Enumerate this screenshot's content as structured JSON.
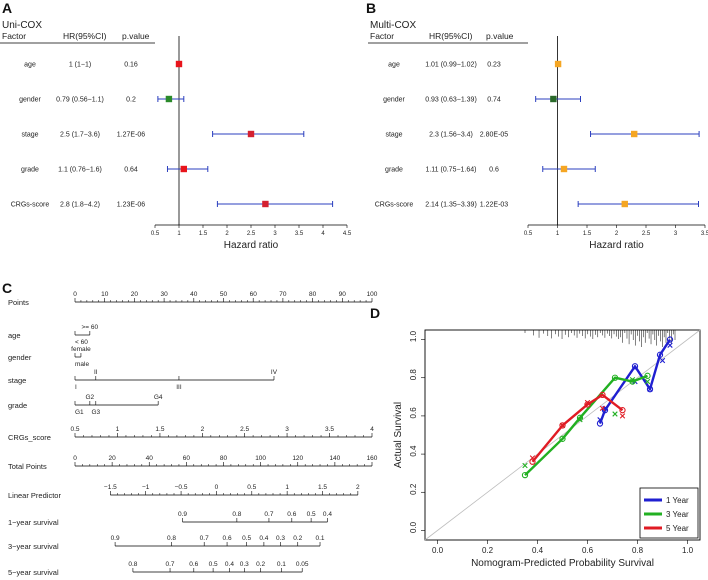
{
  "chart_data": [
    {
      "panel": "A",
      "type": "forest",
      "title": "Uni-COX",
      "headers": [
        "Factor",
        "HR(95%CI)",
        "p.value"
      ],
      "xlabel": "Hazard ratio",
      "xlim": [
        0.5,
        4.5
      ],
      "ticks": [
        "0.5",
        "1",
        "1.5",
        "2",
        "2.5",
        "3",
        "3.5",
        "4",
        "4.5"
      ],
      "rows": [
        {
          "factor": "age",
          "hr_text": "1 (1−1)",
          "p": "0.16",
          "hr": 1.0,
          "lo": 1.0,
          "hi": 1.0,
          "color": "#e8141b"
        },
        {
          "factor": "gender",
          "hr_text": "0.79 (0.56−1.1)",
          "p": "0.2",
          "hr": 0.79,
          "lo": 0.56,
          "hi": 1.1,
          "color": "#2a8a2a"
        },
        {
          "factor": "stage",
          "hr_text": "2.5 (1.7−3.6)",
          "p": "1.27E-06",
          "hr": 2.5,
          "lo": 1.7,
          "hi": 3.6,
          "color": "#d42030"
        },
        {
          "factor": "grade",
          "hr_text": "1.1 (0.76−1.6)",
          "p": "0.64",
          "hr": 1.1,
          "lo": 0.76,
          "hi": 1.6,
          "color": "#e8141b"
        },
        {
          "factor": "CRGs-score",
          "hr_text": "2.8 (1.8−4.2)",
          "p": "1.23E-06",
          "hr": 2.8,
          "lo": 1.8,
          "hi": 4.2,
          "color": "#d42030"
        }
      ]
    },
    {
      "panel": "B",
      "type": "forest",
      "title": "Multi-COX",
      "headers": [
        "Factor",
        "HR(95%CI)",
        "p.value"
      ],
      "xlabel": "Hazard ratio",
      "xlim": [
        0.5,
        3.5
      ],
      "ticks": [
        "0.5",
        "1",
        "1.5",
        "2",
        "2.5",
        "3",
        "3.5"
      ],
      "rows": [
        {
          "factor": "age",
          "hr_text": "1.01 (0.99−1.02)",
          "p": "0.23",
          "hr": 1.01,
          "lo": 0.99,
          "hi": 1.02,
          "color": "#f5a623"
        },
        {
          "factor": "gender",
          "hr_text": "0.93 (0.63−1.39)",
          "p": "0.74",
          "hr": 0.93,
          "lo": 0.63,
          "hi": 1.39,
          "color": "#2a6a2a"
        },
        {
          "factor": "stage",
          "hr_text": "2.3 (1.56−3.4)",
          "p": "2.80E-05",
          "hr": 2.3,
          "lo": 1.56,
          "hi": 3.4,
          "color": "#f5a623"
        },
        {
          "factor": "grade",
          "hr_text": "1.11 (0.75−1.64)",
          "p": "0.6",
          "hr": 1.11,
          "lo": 0.75,
          "hi": 1.64,
          "color": "#f5a623"
        },
        {
          "factor": "CRGs-score",
          "hr_text": "2.14 (1.35−3.39)",
          "p": "1.22E-03",
          "hr": 2.14,
          "lo": 1.35,
          "hi": 3.39,
          "color": "#f5a623"
        }
      ]
    },
    {
      "panel": "C",
      "type": "nomogram",
      "rows": [
        {
          "label": "Points",
          "min": 0,
          "max": 100,
          "ticks": [
            {
              "v": 0,
              "t": "0"
            },
            {
              "v": 10,
              "t": "10"
            },
            {
              "v": 20,
              "t": "20"
            },
            {
              "v": 30,
              "t": "30"
            },
            {
              "v": 40,
              "t": "40"
            },
            {
              "v": 50,
              "t": "50"
            },
            {
              "v": 60,
              "t": "60"
            },
            {
              "v": 70,
              "t": "70"
            },
            {
              "v": 80,
              "t": "80"
            },
            {
              "v": 90,
              "t": "90"
            },
            {
              "v": 100,
              "t": "100"
            }
          ],
          "minor": true
        },
        {
          "label": "age",
          "min": 0,
          "max": 100,
          "cat": [
            {
              "p": 0,
              "t": "< 60",
              "pos": "below"
            },
            {
              "p": 5,
              "t": ">= 60",
              "pos": "above"
            }
          ]
        },
        {
          "label": "gender",
          "min": 0,
          "max": 100,
          "cat": [
            {
              "p": 0,
              "t": "male",
              "pos": "below"
            },
            {
              "p": 2,
              "t": "female",
              "pos": "above"
            }
          ]
        },
        {
          "label": "stage",
          "min": 0,
          "max": 100,
          "cat": [
            {
              "p": 0,
              "t": "I",
              "pos": "below"
            },
            {
              "p": 7,
              "t": "II",
              "pos": "above"
            },
            {
              "p": 35,
              "t": "III",
              "pos": "below"
            },
            {
              "p": 67,
              "t": "IV",
              "pos": "above"
            }
          ]
        },
        {
          "label": "grade",
          "min": 0,
          "max": 100,
          "cat": [
            {
              "p": 0,
              "t": "G1",
              "pos": "below"
            },
            {
              "p": 5,
              "t": "G2",
              "pos": "above"
            },
            {
              "p": 7,
              "t": "G3",
              "pos": "below"
            },
            {
              "p": 28,
              "t": "G4",
              "pos": "above"
            }
          ]
        },
        {
          "label": "CRGs_score",
          "min": 0,
          "max": 100,
          "ticks": [
            {
              "v": 0,
              "t": "0.5"
            },
            {
              "v": 14.3,
              "t": "1"
            },
            {
              "v": 28.6,
              "t": "1.5"
            },
            {
              "v": 42.9,
              "t": "2"
            },
            {
              "v": 57.1,
              "t": "2.5"
            },
            {
              "v": 71.4,
              "t": "3"
            },
            {
              "v": 85.7,
              "t": "3.5"
            },
            {
              "v": 100,
              "t": "4"
            }
          ],
          "minor": true
        },
        {
          "label": "Total Points",
          "min": 0,
          "max": 160,
          "ticks": [
            {
              "v": 0,
              "t": "0"
            },
            {
              "v": 20,
              "t": "20"
            },
            {
              "v": 40,
              "t": "40"
            },
            {
              "v": 60,
              "t": "60"
            },
            {
              "v": 80,
              "t": "80"
            },
            {
              "v": 100,
              "t": "100"
            },
            {
              "v": 120,
              "t": "120"
            },
            {
              "v": 140,
              "t": "140"
            },
            {
              "v": 160,
              "t": "160"
            }
          ],
          "minor": true
        },
        {
          "label": "Linear Predictor",
          "min": -2,
          "max": 2.2,
          "ticks": [
            {
              "v": -1.5,
              "t": "−1.5"
            },
            {
              "v": -1,
              "t": "−1"
            },
            {
              "v": -0.5,
              "t": "−0.5"
            },
            {
              "v": 0,
              "t": "0"
            },
            {
              "v": 0.5,
              "t": "0.5"
            },
            {
              "v": 1,
              "t": "1"
            },
            {
              "v": 1.5,
              "t": "1.5"
            },
            {
              "v": 2,
              "t": "2"
            }
          ],
          "minor": true
        },
        {
          "label": "1−year survival",
          "min": 0,
          "max": 100,
          "ticks": [
            {
              "v": 36.2,
              "t": "0.9"
            },
            {
              "v": 54.5,
              "t": "0.8"
            },
            {
              "v": 65.3,
              "t": "0.7"
            },
            {
              "v": 73.0,
              "t": "0.6"
            },
            {
              "v": 79.5,
              "t": "0.5"
            },
            {
              "v": 85.0,
              "t": "0.4"
            }
          ],
          "minor": false
        },
        {
          "label": "3−year survival",
          "min": 0,
          "max": 100,
          "ticks": [
            {
              "v": 13.5,
              "t": "0.9"
            },
            {
              "v": 32.5,
              "t": "0.8"
            },
            {
              "v": 43.5,
              "t": "0.7"
            },
            {
              "v": 51.2,
              "t": "0.6"
            },
            {
              "v": 57.8,
              "t": "0.5"
            },
            {
              "v": 63.6,
              "t": "0.4"
            },
            {
              "v": 69.2,
              "t": "0.3"
            },
            {
              "v": 75.0,
              "t": "0.2"
            },
            {
              "v": 82.5,
              "t": "0.1"
            }
          ],
          "minor": false
        },
        {
          "label": "5−year survival",
          "min": 0,
          "max": 100,
          "ticks": [
            {
              "v": 19.5,
              "t": "0.8"
            },
            {
              "v": 32.0,
              "t": "0.7"
            },
            {
              "v": 40.0,
              "t": "0.6"
            },
            {
              "v": 46.5,
              "t": "0.5"
            },
            {
              "v": 52.0,
              "t": "0.4"
            },
            {
              "v": 57.0,
              "t": "0.3"
            },
            {
              "v": 62.5,
              "t": "0.2"
            },
            {
              "v": 69.5,
              "t": "0.1"
            },
            {
              "v": 76.5,
              "t": "0.05"
            }
          ],
          "minor": false
        }
      ]
    },
    {
      "panel": "D",
      "type": "line",
      "xlabel": "Nomogram-Predicted Probability Survival",
      "ylabel": "Actual Survival",
      "xlim": [
        -0.05,
        1.05
      ],
      "ylim": [
        -0.05,
        1.05
      ],
      "ticks": [
        "0.0",
        "0.2",
        "0.4",
        "0.6",
        "0.8",
        "1.0"
      ],
      "legend": "bottom-right",
      "series": [
        {
          "name": "1 Year",
          "color": "#1f1fd1",
          "x": [
            0.65,
            0.67,
            0.79,
            0.85,
            0.89,
            0.93
          ],
          "y": [
            0.56,
            0.63,
            0.86,
            0.74,
            0.92,
            1.0
          ],
          "ox": [
            0.65,
            0.67,
            0.79,
            0.85,
            0.89,
            0.93
          ],
          "oy": [
            0.56,
            0.63,
            0.86,
            0.74,
            0.92,
            1.0
          ],
          "xx": [
            0.65,
            0.67,
            0.79,
            0.85,
            0.9,
            0.93
          ],
          "xy": [
            0.58,
            0.64,
            0.78,
            0.74,
            0.89,
            0.97
          ]
        },
        {
          "name": "3 Year",
          "color": "#22b022",
          "x": [
            0.35,
            0.5,
            0.57,
            0.71,
            0.78,
            0.84
          ],
          "y": [
            0.29,
            0.48,
            0.59,
            0.8,
            0.78,
            0.81
          ],
          "ox": [
            0.35,
            0.5,
            0.57,
            0.71,
            0.78,
            0.84
          ],
          "oy": [
            0.29,
            0.48,
            0.59,
            0.8,
            0.78,
            0.81
          ],
          "xx": [
            0.35,
            0.5,
            0.57,
            0.71,
            0.78,
            0.84
          ],
          "xy": [
            0.34,
            0.55,
            0.58,
            0.61,
            0.79,
            0.78
          ]
        },
        {
          "name": "5 Year",
          "color": "#e01b24",
          "x": [
            0.38,
            0.5,
            0.6,
            0.66,
            0.74
          ],
          "y": [
            0.36,
            0.55,
            0.66,
            0.71,
            0.63
          ],
          "ox": [
            0.38,
            0.5,
            0.6,
            0.66,
            0.74
          ],
          "oy": [
            0.36,
            0.55,
            0.66,
            0.71,
            0.63
          ],
          "xx": [
            0.38,
            0.5,
            0.6,
            0.66,
            0.74
          ],
          "xy": [
            0.38,
            0.55,
            0.67,
            0.64,
            0.6
          ]
        }
      ]
    }
  ],
  "panels": {
    "A": "A",
    "B": "B",
    "C": "C",
    "D": "D"
  }
}
